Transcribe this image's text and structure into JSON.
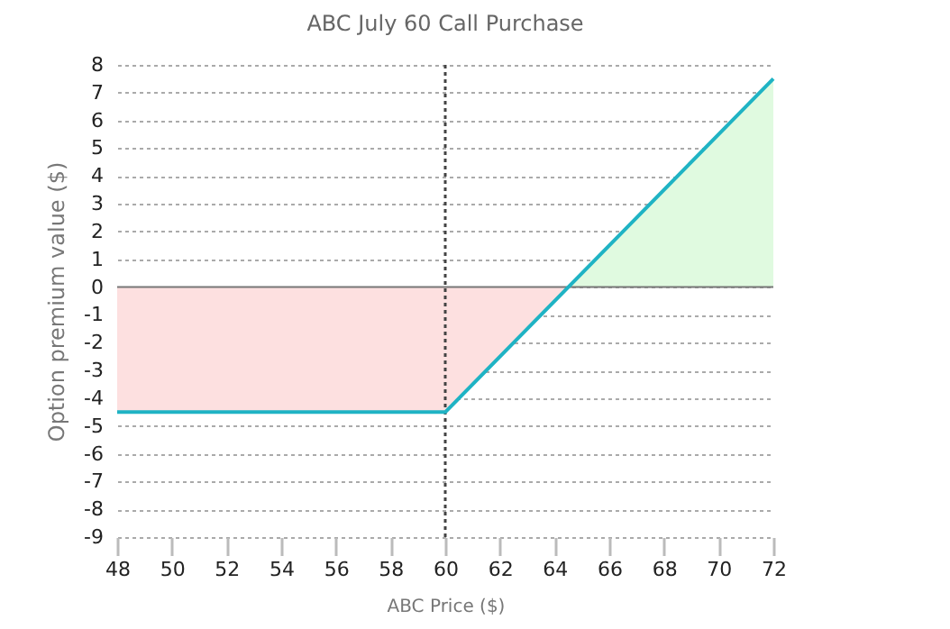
{
  "chart_data": {
    "type": "line",
    "title": "ABC July 60 Call Purchase",
    "xlabel": "ABC Price ($)",
    "ylabel": "Option premium value ($)",
    "series": [
      {
        "type": "area",
        "color": "#fde0e0",
        "x": [
          48,
          60,
          64.5
        ],
        "values": [
          -4.5,
          -4.5,
          0
        ]
      },
      {
        "type": "area",
        "color": "#e0fae0",
        "x": [
          64.5,
          72
        ],
        "values": [
          0,
          7.5
        ]
      },
      {
        "type": "line",
        "color": "#1fb3c4",
        "x": [
          48,
          60,
          72
        ],
        "values": [
          -4.5,
          -4.5,
          7.5
        ]
      }
    ],
    "xlim": [
      48,
      72
    ],
    "xticks": [
      48,
      50,
      52,
      54,
      56,
      58,
      60,
      62,
      64,
      66,
      68,
      70,
      72
    ],
    "ylim": [
      -9,
      8
    ],
    "yticks": [
      -9,
      -8,
      -7,
      -6,
      -5,
      -4,
      -3,
      -2,
      -1,
      0,
      1,
      2,
      3,
      4,
      5,
      6,
      7,
      8
    ],
    "ref_lines": [
      {
        "axis": "x",
        "value": 60,
        "color": "#444444",
        "line_style": "dotted"
      },
      {
        "axis": "y",
        "value": 0,
        "color": "#777777",
        "line_style": "solid"
      }
    ],
    "grid": "y",
    "line_style": "solid",
    "marker": "none"
  }
}
